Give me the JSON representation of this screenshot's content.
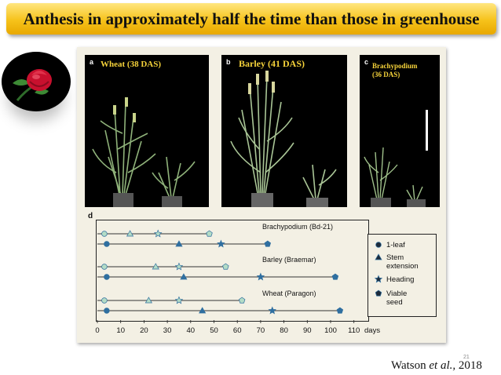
{
  "slide": {
    "title": "Anthesis in approximately half the time than those in greenhouse",
    "citation_author": "Watson",
    "citation_etal": "et al.,",
    "citation_year": "2018",
    "page_number": "21"
  },
  "photos": [
    {
      "letter": "a",
      "title": "Wheat (38 DAS)"
    },
    {
      "letter": "b",
      "title": "Barley (41 DAS)"
    },
    {
      "letter": "c",
      "title": "Brachypodium\n(36 DAS)"
    }
  ],
  "chart_data": {
    "type": "timeline",
    "panel_letter": "d",
    "x_ticks": [
      "0",
      "10",
      "20",
      "30",
      "40",
      "50",
      "60",
      "70",
      "80",
      "90",
      "100",
      "110"
    ],
    "x_unit": "days",
    "xlim": [
      0,
      110
    ],
    "groups": [
      {
        "name": "Brachypodium (Bd-21)",
        "rows": [
          {
            "line_end": 48,
            "stages": {
              "1-leaf": 3,
              "Stem extension": 14,
              "Heading": 26,
              "Viable seed": 48
            },
            "color": "#b3dcc6"
          },
          {
            "line_end": 73,
            "stages": {
              "1-leaf": 4,
              "Stem extension": 35,
              "Heading": 53,
              "Viable seed": 73
            },
            "color": "#2f6fa0"
          }
        ]
      },
      {
        "name": "Barley (Braemar)",
        "rows": [
          {
            "line_end": 55,
            "stages": {
              "1-leaf": 3,
              "Stem extension": 25,
              "Heading": 35,
              "Viable seed": 55
            },
            "color": "#b3dcc6"
          },
          {
            "line_end": 102,
            "stages": {
              "1-leaf": 4,
              "Stem extension": 37,
              "Heading": 70,
              "Viable seed": 102
            },
            "color": "#2f6fa0"
          }
        ]
      },
      {
        "name": "Wheat (Paragon)",
        "rows": [
          {
            "line_end": 62,
            "stages": {
              "1-leaf": 3,
              "Stem extension": 22,
              "Heading": 35,
              "Viable seed": 62
            },
            "color": "#b3dcc6"
          },
          {
            "line_end": 104,
            "stages": {
              "1-leaf": 4,
              "Stem extension": 45,
              "Heading": 75,
              "Viable seed": 104
            },
            "color": "#2f6fa0"
          }
        ]
      }
    ],
    "legend": [
      {
        "shape": "circle",
        "label": "1-leaf"
      },
      {
        "shape": "triangle",
        "label": "Stem\nextension"
      },
      {
        "shape": "star",
        "label": "Heading"
      },
      {
        "shape": "pentagon",
        "label": "Viable\nseed"
      }
    ]
  }
}
